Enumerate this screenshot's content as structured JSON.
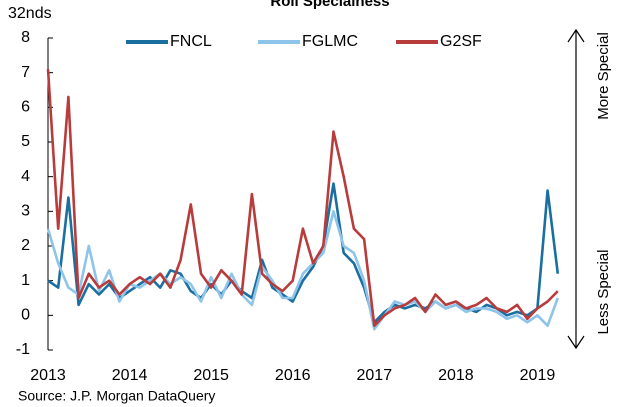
{
  "chart_data": {
    "type": "line",
    "title": "Roll Specialness",
    "y_label": "32nds",
    "annotations": [
      "More Special",
      "Less Special"
    ],
    "source": "Source: J.P. Morgan  DataQuery",
    "legend": "top",
    "x": [
      2013.0,
      2013.125,
      2013.25,
      2013.375,
      2013.5,
      2013.625,
      2013.75,
      2013.875,
      2014.0,
      2014.125,
      2014.25,
      2014.375,
      2014.5,
      2014.625,
      2014.75,
      2014.875,
      2015.0,
      2015.125,
      2015.25,
      2015.375,
      2015.5,
      2015.625,
      2015.75,
      2015.875,
      2016.0,
      2016.125,
      2016.25,
      2016.375,
      2016.5,
      2016.625,
      2016.75,
      2016.875,
      2017.0,
      2017.125,
      2017.25,
      2017.375,
      2017.5,
      2017.625,
      2017.75,
      2017.875,
      2018.0,
      2018.125,
      2018.25,
      2018.375,
      2018.5,
      2018.625,
      2018.75,
      2018.875,
      2019.0,
      2019.125,
      2019.25
    ],
    "series": [
      {
        "name": "FNCL",
        "color": "#1a6fa0",
        "values": [
          1.0,
          0.8,
          3.4,
          0.3,
          0.9,
          0.6,
          0.9,
          0.5,
          0.7,
          0.9,
          1.1,
          0.8,
          1.3,
          1.2,
          0.7,
          0.5,
          0.9,
          0.6,
          1.0,
          0.7,
          0.5,
          1.6,
          0.8,
          0.6,
          0.4,
          1.0,
          1.4,
          2.0,
          3.8,
          1.8,
          1.5,
          0.8,
          -0.2,
          0.1,
          0.3,
          0.2,
          0.3,
          0.2,
          0.4,
          0.2,
          0.3,
          0.2,
          0.1,
          0.3,
          0.2,
          0.0,
          0.1,
          0.0,
          0.2,
          3.6,
          1.2
        ]
      },
      {
        "name": "FGLMC",
        "color": "#8ec4ea",
        "values": [
          2.5,
          1.5,
          0.8,
          0.6,
          2.0,
          0.7,
          1.3,
          0.4,
          0.9,
          0.8,
          1.0,
          1.2,
          0.9,
          1.1,
          0.9,
          0.4,
          1.1,
          0.5,
          1.2,
          0.6,
          0.3,
          1.4,
          1.0,
          0.5,
          0.5,
          1.2,
          1.5,
          1.8,
          3.0,
          2.0,
          1.8,
          1.0,
          -0.4,
          0.0,
          0.4,
          0.3,
          0.4,
          0.1,
          0.4,
          0.2,
          0.3,
          0.1,
          0.2,
          0.2,
          0.1,
          -0.1,
          0.0,
          -0.2,
          0.0,
          -0.3,
          0.5
        ]
      },
      {
        "name": "G2SF",
        "color": "#b83c3c",
        "values": [
          7.1,
          2.5,
          6.3,
          0.5,
          1.2,
          0.8,
          1.0,
          0.6,
          0.9,
          1.1,
          0.9,
          1.2,
          0.8,
          1.6,
          3.2,
          1.2,
          0.8,
          1.3,
          1.0,
          0.6,
          3.5,
          1.2,
          0.9,
          0.7,
          1.0,
          2.5,
          1.5,
          2.0,
          5.3,
          4.0,
          2.5,
          2.2,
          -0.3,
          0.0,
          0.2,
          0.3,
          0.5,
          0.1,
          0.6,
          0.3,
          0.4,
          0.2,
          0.3,
          0.5,
          0.2,
          0.1,
          0.3,
          -0.1,
          0.2,
          0.4,
          0.7
        ]
      }
    ],
    "xlim": [
      2013,
      2019.35
    ],
    "xticks": [
      2013,
      2014,
      2015,
      2016,
      2017,
      2018,
      2019
    ],
    "ylim": [
      -1,
      8
    ],
    "yticks": [
      -1,
      0,
      1,
      2,
      3,
      4,
      5,
      6,
      7,
      8
    ]
  }
}
